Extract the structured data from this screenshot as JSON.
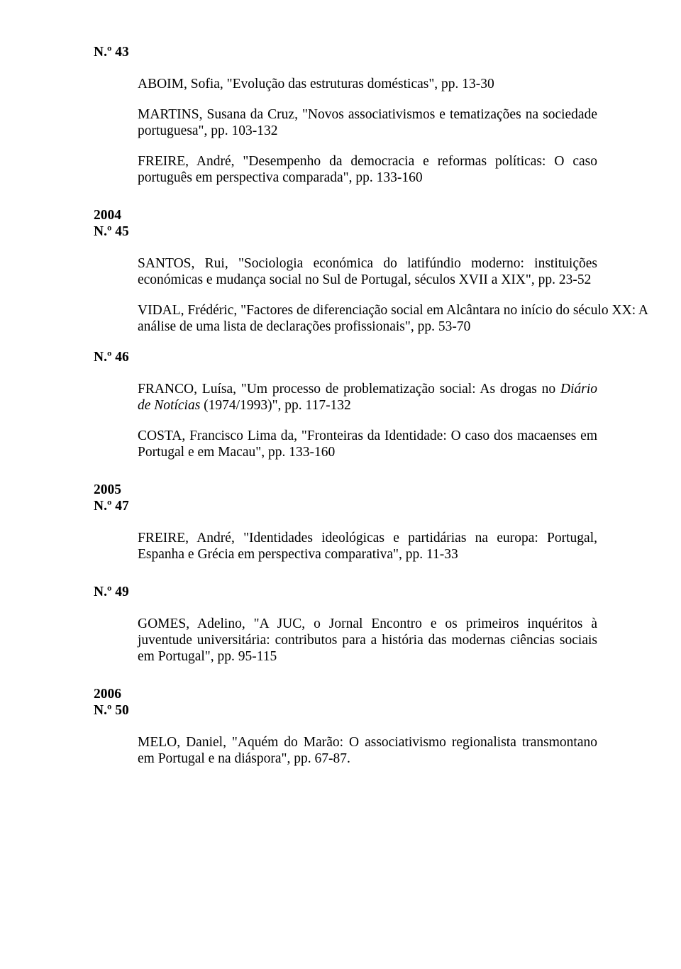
{
  "issues": {
    "n43": {
      "label": "N.º 43",
      "e1": "ABOIM, Sofia, \"Evolução das estruturas domésticas\", pp. 13-30",
      "e2": "MARTINS, Susana da Cruz, \"Novos associativismos e tematizações na sociedade portuguesa\", pp. 103-132",
      "e3": "FREIRE, André, \"Desempenho da democracia e reformas políticas: O caso português em perspectiva comparada\", pp. 133-160"
    },
    "y2004": {
      "year": "2004"
    },
    "n45": {
      "label": "N.º 45",
      "e1": "SANTOS, Rui, \"Sociologia económica do latifúndio moderno: instituições económicas e mudança social no Sul de Portugal, séculos XVII a XIX\", pp. 23-52",
      "e2": "VIDAL, Frédéric, \"Factores de diferenciação social em Alcântara no início do século XX: A análise de uma lista de declarações profissionais\", pp. 53-70"
    },
    "n46": {
      "label": "N.º 46",
      "e1_pre": "FRANCO, Luísa, \"Um processo de problematização social: As drogas no ",
      "e1_italic": "Diário de Notícias",
      "e1_post": " (1974/1993)\", pp. 117-132",
      "e2": "COSTA, Francisco Lima da, \"Fronteiras da Identidade: O caso dos macaenses em Portugal e em Macau\", pp. 133-160"
    },
    "y2005": {
      "year": "2005"
    },
    "n47": {
      "label": "N.º 47",
      "e1": "FREIRE, André, \"Identidades ideológicas e partidárias na europa: Portugal, Espanha e Grécia em perspectiva comparativa\", pp. 11-33"
    },
    "n49": {
      "label": "N.º 49",
      "e1": "GOMES, Adelino, \"A JUC, o Jornal Encontro e os primeiros inquéritos à juventude universitária: contributos para a história das modernas ciências sociais em Portugal\", pp. 95-115"
    },
    "y2006": {
      "year": "2006"
    },
    "n50": {
      "label": "N.º 50",
      "e1": "MELO, Daniel, \"Aquém do Marão: O associativismo regionalista transmontano em Portugal e na diáspora\", pp. 67-87."
    }
  }
}
